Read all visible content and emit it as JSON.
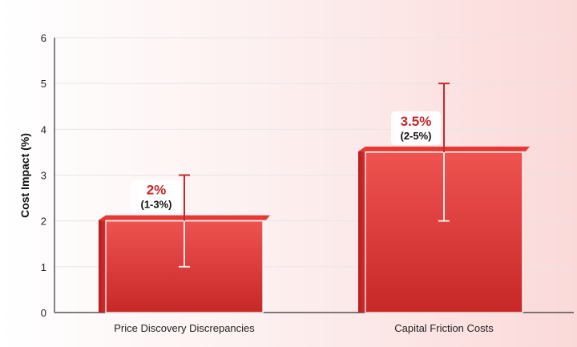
{
  "chart_data": {
    "type": "bar",
    "categories": [
      "Price Discovery Discrepancies",
      "Capital Friction Costs"
    ],
    "values": [
      2,
      3.5
    ],
    "error_low": [
      1,
      2
    ],
    "error_high": [
      3,
      5
    ],
    "value_labels": [
      "2%",
      "3.5%"
    ],
    "range_labels": [
      "(1-3%)",
      "(2-5%)"
    ],
    "xlabel": "",
    "ylabel": "Cost Impact (%)",
    "ylim": [
      0,
      6
    ],
    "yticks": [
      0,
      1,
      2,
      3,
      4,
      5,
      6
    ],
    "grid": true,
    "colors": {
      "bar_top": "#ef5350",
      "bar_bottom": "#c62828",
      "bar_edge": "#b71c1c",
      "error_bar": "#c62828",
      "value_text": "#c62828",
      "grid": "#e6e6e6",
      "axis": "#333333"
    }
  }
}
